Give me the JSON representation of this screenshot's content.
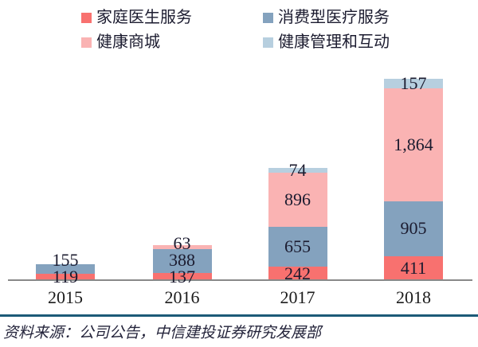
{
  "figure": {
    "source_note": "资料来源：公司公告，中信建投证券研究发展部"
  },
  "chart_data": {
    "type": "bar",
    "stacked": true,
    "title": "",
    "xlabel": "",
    "ylabel": "",
    "grid": false,
    "legend_position": "top",
    "axis_line_color": "#898989",
    "value_label_color": "#1b1b2f",
    "divider_color": "#1c5a78",
    "categories": [
      "2015",
      "2016",
      "2017",
      "2018"
    ],
    "series": [
      {
        "name": "家庭医生服务",
        "color": "#f8716f",
        "values": [
          119,
          137,
          242,
          411
        ],
        "labels": [
          "119",
          "137",
          "242",
          "411"
        ]
      },
      {
        "name": "消费型医疗服务",
        "color": "#84a2be",
        "values": [
          155,
          388,
          655,
          905
        ],
        "labels": [
          "155",
          "388",
          "655",
          "905"
        ]
      },
      {
        "name": "健康商城",
        "color": "#fab3b3",
        "values": [
          0,
          63,
          896,
          1864
        ],
        "labels": [
          "",
          "63",
          "896",
          "1,864"
        ]
      },
      {
        "name": "健康管理和互动",
        "color": "#b7cfdf",
        "values": [
          0,
          0,
          74,
          157
        ],
        "labels": [
          "",
          "",
          "74",
          "157"
        ]
      }
    ],
    "totals": [
      274,
      588,
      1867,
      3337
    ]
  }
}
